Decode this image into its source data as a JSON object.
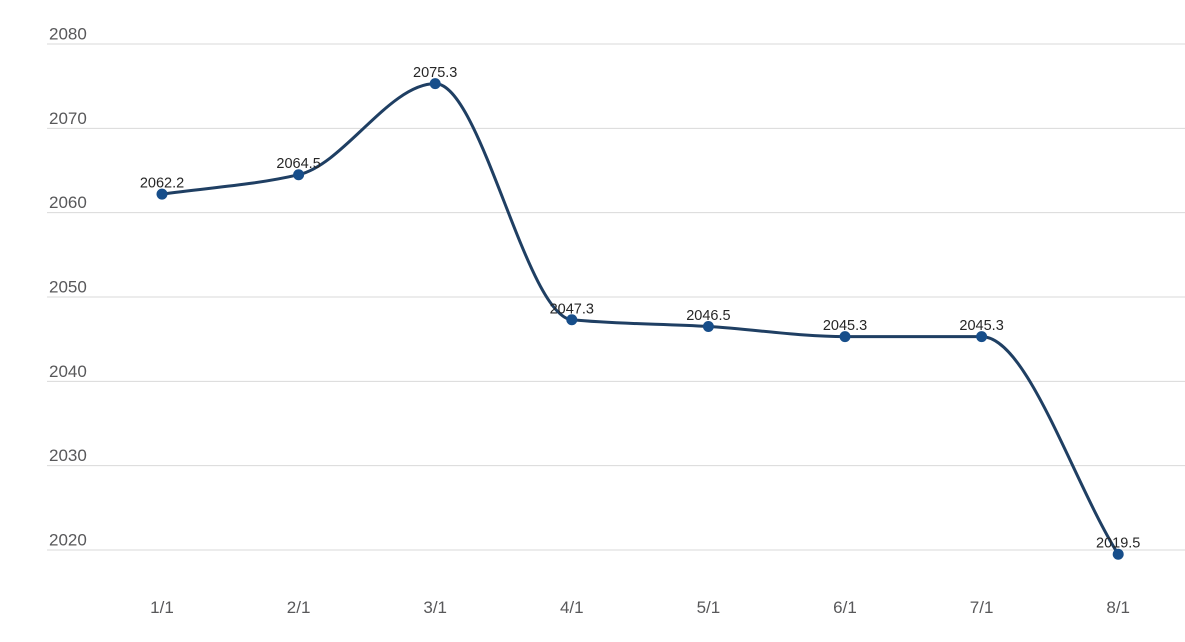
{
  "chart_data": {
    "type": "line",
    "curve": "monotone",
    "categories": [
      "1/1",
      "2/1",
      "3/1",
      "4/1",
      "5/1",
      "6/1",
      "7/1",
      "8/1"
    ],
    "values": [
      2062.2,
      2064.5,
      2075.3,
      2047.3,
      2046.5,
      2045.3,
      2045.3,
      2019.5
    ],
    "point_labels": [
      "2062.2",
      "2064.5",
      "2075.3",
      "2047.3",
      "2046.5",
      "2045.3",
      "2045.3",
      "2019.5"
    ],
    "y_ticks": [
      2020,
      2030,
      2040,
      2050,
      2060,
      2070,
      2080
    ],
    "y_tick_labels": [
      "2020",
      "2030",
      "2040",
      "2050",
      "2060",
      "2070",
      "2080"
    ],
    "title": "",
    "xlabel": "",
    "ylabel": "",
    "ylim": [
      2020,
      2080
    ],
    "grid": true,
    "legend": false,
    "colors": {
      "line": "#1f3f63",
      "marker": "#174e8a",
      "grid": "#d9d9d9",
      "axis_label": "#58585a",
      "data_label": "#262626",
      "background": "#ffffff"
    }
  }
}
